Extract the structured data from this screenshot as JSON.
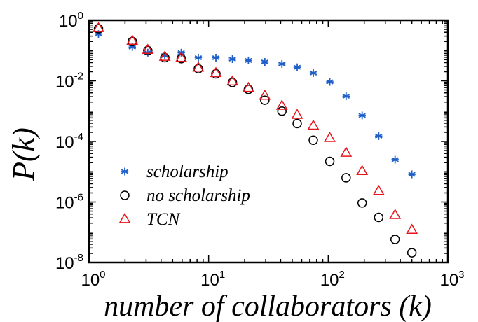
{
  "chart_data": {
    "type": "scatter",
    "title": "",
    "xlabel": "number of collaborators (k)",
    "ylabel": "P(k)",
    "xscale": "log",
    "yscale": "log",
    "xlim": [
      1,
      1000
    ],
    "ylim": [
      1e-08,
      1
    ],
    "x_ticks": [
      {
        "value": 1,
        "base": "10",
        "exp": "0"
      },
      {
        "value": 10,
        "base": "10",
        "exp": "1"
      },
      {
        "value": 100,
        "base": "10",
        "exp": "2"
      },
      {
        "value": 1000,
        "base": "10",
        "exp": "3"
      }
    ],
    "y_ticks": [
      {
        "value": 1,
        "base": "10",
        "exp": "0"
      },
      {
        "value": 0.01,
        "base": "10",
        "exp": "-2"
      },
      {
        "value": 0.0001,
        "base": "10",
        "exp": "-4"
      },
      {
        "value": 1e-06,
        "base": "10",
        "exp": "-6"
      },
      {
        "value": 1e-08,
        "base": "10",
        "exp": "-8"
      }
    ],
    "grid": false,
    "legend_position": "bottom-left",
    "series": [
      {
        "name": "scholarship",
        "marker": "asterisk",
        "color": "#1f5fc8",
        "points": [
          [
            1.2,
            0.35
          ],
          [
            2.3,
            0.13
          ],
          [
            3.1,
            0.085
          ],
          [
            4.3,
            0.068
          ],
          [
            5.9,
            0.085
          ],
          [
            8.2,
            0.058
          ],
          [
            11.5,
            0.058
          ],
          [
            15.8,
            0.052
          ],
          [
            21.5,
            0.047
          ],
          [
            29.5,
            0.042
          ],
          [
            41,
            0.036
          ],
          [
            55,
            0.028
          ],
          [
            75,
            0.018
          ],
          [
            103,
            0.0092
          ],
          [
            141,
            0.0031
          ],
          [
            192,
            0.00072
          ],
          [
            264,
            0.00015
          ],
          [
            362,
            2.5e-05
          ],
          [
            500,
            8.2e-06
          ]
        ]
      },
      {
        "name": "no scholarship",
        "marker": "circle",
        "color": "#000000",
        "points": [
          [
            1.2,
            0.53
          ],
          [
            2.3,
            0.2
          ],
          [
            3.1,
            0.1
          ],
          [
            4.3,
            0.058
          ],
          [
            5.9,
            0.054
          ],
          [
            8.2,
            0.025
          ],
          [
            11.5,
            0.017
          ],
          [
            15.8,
            0.0088
          ],
          [
            21.5,
            0.0052
          ],
          [
            29.5,
            0.0023
          ],
          [
            41,
            0.001
          ],
          [
            55,
            0.00039
          ],
          [
            75,
            0.00011
          ],
          [
            103,
            2.2e-05
          ],
          [
            141,
            6.3e-06
          ],
          [
            192,
            9.3e-07
          ],
          [
            264,
            3.1e-07
          ],
          [
            362,
            5.8e-08
          ],
          [
            500,
            2.1e-08
          ]
        ]
      },
      {
        "name": "TCN",
        "marker": "triangle",
        "color": "#e8141c",
        "points": [
          [
            1.2,
            0.55
          ],
          [
            2.3,
            0.21
          ],
          [
            3.1,
            0.105
          ],
          [
            4.3,
            0.062
          ],
          [
            5.9,
            0.057
          ],
          [
            8.2,
            0.027
          ],
          [
            11.5,
            0.018
          ],
          [
            15.8,
            0.0095
          ],
          [
            21.5,
            0.0058
          ],
          [
            29.5,
            0.0032
          ],
          [
            41,
            0.0015
          ],
          [
            55,
            0.00075
          ],
          [
            75,
            0.00033
          ],
          [
            103,
            0.00013
          ],
          [
            141,
            4.2e-05
          ],
          [
            192,
            1.05e-05
          ],
          [
            264,
            2.3e-06
          ],
          [
            362,
            3.7e-07
          ],
          [
            500,
            1.2e-07
          ]
        ]
      }
    ]
  }
}
